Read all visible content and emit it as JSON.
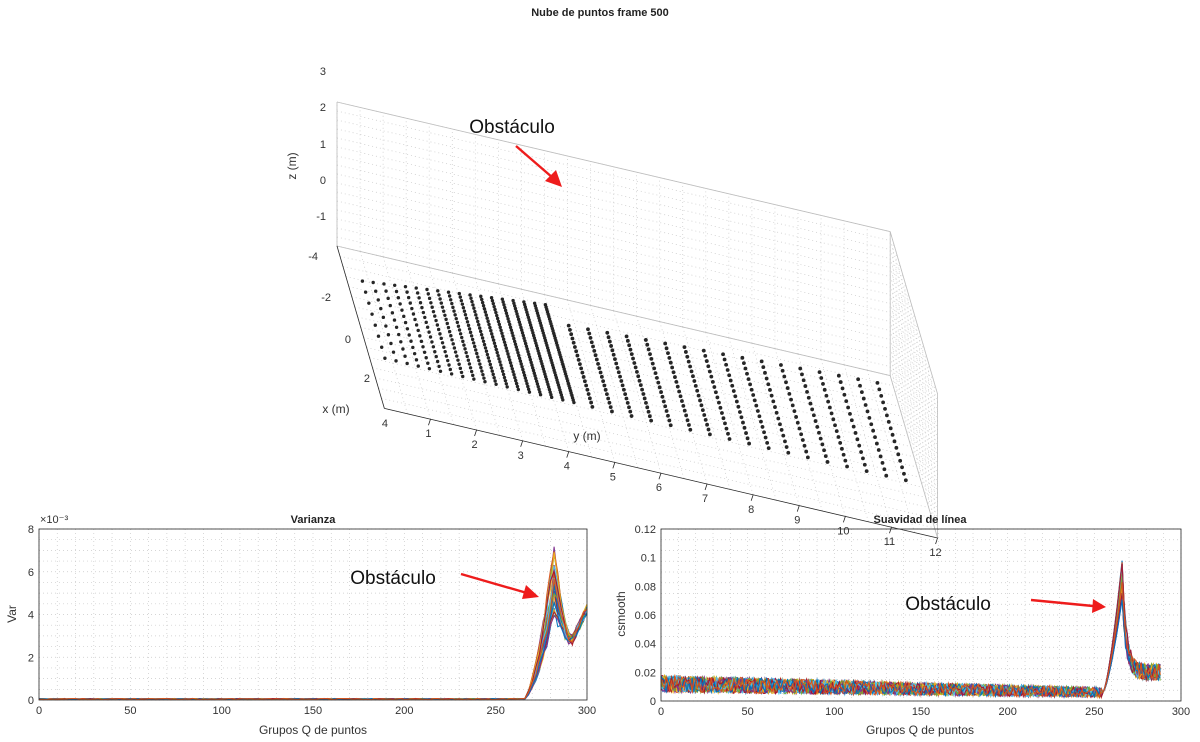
{
  "colors": {
    "arrow": "#ee1c1c",
    "points": "#262626",
    "series_palette": [
      "#0072BD",
      "#D95319",
      "#EDB120",
      "#7E2F8E",
      "#77AC30",
      "#4DBEEE",
      "#A2142F"
    ]
  },
  "chart_data": [
    {
      "id": "pointcloud",
      "type": "scatter",
      "title": "Nube de puntos frame 500",
      "xlabel": "x (m)",
      "ylabel": "y (m)",
      "zlabel": "z (m)",
      "x_ticks": [
        "-4",
        "-2",
        "0",
        "2",
        "4"
      ],
      "y_ticks": [
        "1",
        "2",
        "3",
        "4",
        "5",
        "6",
        "7",
        "8",
        "9",
        "10",
        "11",
        "12"
      ],
      "z_ticks": [
        "3",
        "2",
        "1",
        "0",
        "-1"
      ],
      "xlim": [
        -4,
        4
      ],
      "ylim": [
        0,
        12
      ],
      "zlim": [
        -1,
        3
      ],
      "grid": true,
      "annotation": "Obstáculo",
      "near_segment": {
        "y_range": [
          0.5,
          4.6
        ],
        "x_range": [
          -3.6,
          0.2
        ],
        "z": -1.6
      },
      "obstacle_gap": {
        "y_range": [
          4.6,
          5.0
        ]
      },
      "far_segment": {
        "y_range": [
          5.0,
          11.8
        ],
        "x_range": [
          -3.8,
          0.2
        ],
        "z": -1.6
      }
    },
    {
      "id": "varianza",
      "type": "line",
      "title": "Varianza",
      "xlabel": "Grupos Q de puntos",
      "ylabel": "Var",
      "y_exponent": "×10⁻³",
      "xlim": [
        0,
        300
      ],
      "ylim": [
        0,
        8
      ],
      "x_ticks": [
        "0",
        "50",
        "100",
        "150",
        "200",
        "250",
        "300"
      ],
      "y_ticks": [
        "0",
        "2",
        "4",
        "6",
        "8"
      ],
      "grid": true,
      "annotation": "Obstáculo",
      "series_count": 30,
      "baseline_value": 0.05,
      "rise_start_x": 265,
      "peak_x": 282,
      "peak_values": [
        4.6,
        5.5,
        6.0,
        7.2
      ],
      "end_x": 300,
      "end_value": 4.2
    },
    {
      "id": "suavidad",
      "type": "line",
      "title": "Suavidad de línea",
      "xlabel": "Grupos Q de puntos",
      "ylabel": "csmooth",
      "xlim": [
        0,
        300
      ],
      "ylim": [
        0,
        0.12
      ],
      "x_ticks": [
        "0",
        "50",
        "100",
        "150",
        "200",
        "250",
        "300"
      ],
      "y_ticks": [
        "0",
        "0.02",
        "0.04",
        "0.06",
        "0.08",
        "0.1",
        "0.12"
      ],
      "grid": true,
      "annotation": "Obstáculo",
      "series_count": 30,
      "noise_start_level": 0.012,
      "noise_end_level": 0.006,
      "noise_amplitude": 0.01,
      "rise_start_x": 255,
      "peak_x": 266,
      "peak_values": [
        0.08,
        0.09,
        0.095,
        0.1
      ],
      "end_x": 288,
      "end_value": 0.02
    }
  ]
}
